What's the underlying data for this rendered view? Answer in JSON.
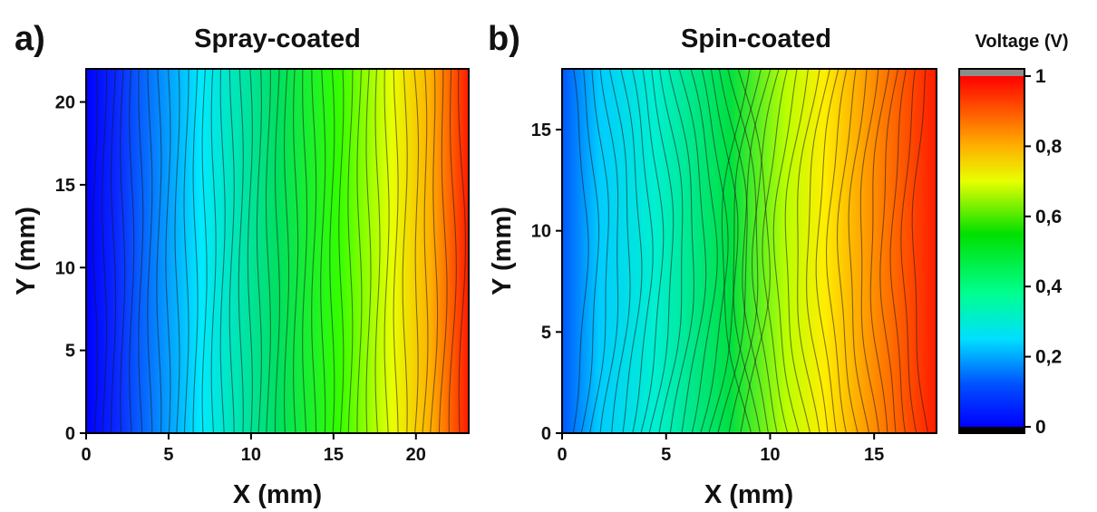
{
  "chart_data": [
    {
      "type": "heatmap",
      "panel_label": "a)",
      "title": "Spray-coated",
      "xlabel": "X (mm)",
      "ylabel": "Y (mm)",
      "xlim": [
        0,
        23.2
      ],
      "ylim": [
        0,
        22
      ],
      "xticks": [
        0,
        5,
        10,
        15,
        20
      ],
      "yticks": [
        0,
        5,
        10,
        15,
        20
      ],
      "description_value": "Voltage (V)",
      "voltage_profile": {
        "x": [
          0,
          2,
          5,
          10,
          15,
          20,
          23.2
        ],
        "v": [
          0.0,
          0.08,
          0.25,
          0.42,
          0.58,
          0.78,
          1.0
        ]
      },
      "contour_lines": 42
    },
    {
      "type": "heatmap",
      "panel_label": "b)",
      "title": "Spin-coated",
      "xlabel": "X (mm)",
      "ylabel": "Y (mm)",
      "xlim": [
        0,
        18
      ],
      "ylim": [
        0,
        18
      ],
      "xticks": [
        0,
        5,
        10,
        15
      ],
      "yticks": [
        0,
        5,
        10,
        15
      ],
      "voltage_profile": {
        "x": [
          0,
          1,
          5,
          9,
          12,
          15,
          18
        ],
        "v": [
          0.05,
          0.2,
          0.36,
          0.52,
          0.72,
          0.88,
          1.0
        ]
      },
      "contour_lines": 38
    }
  ],
  "colorbar": {
    "title": "Voltage (V)",
    "ticks": [
      0,
      0.2,
      0.4,
      0.6,
      0.8,
      1.0
    ],
    "tick_labels": [
      "0",
      "0,2",
      "0,4",
      "0,6",
      "0,8",
      "1"
    ],
    "range": [
      0,
      1
    ],
    "colormap": [
      "#000000",
      "#0000ff",
      "#00ffff",
      "#00ff00",
      "#ffff00",
      "#ff8000",
      "#ff0000",
      "#808080"
    ]
  }
}
